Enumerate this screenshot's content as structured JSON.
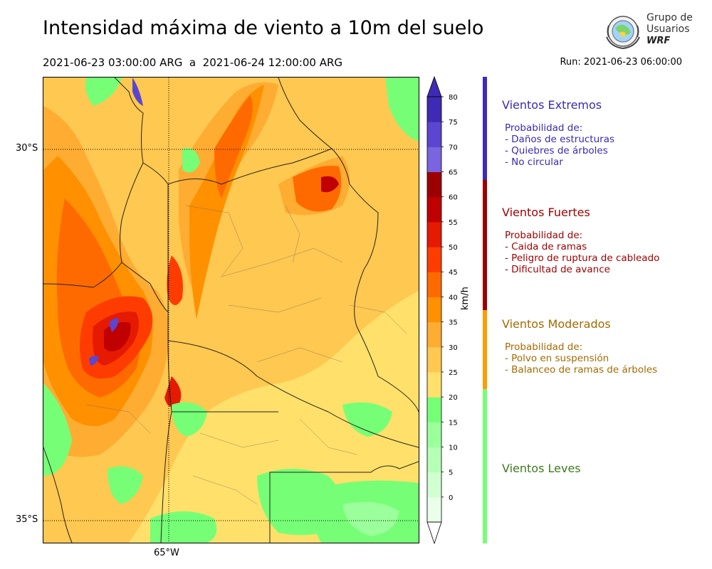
{
  "header": {
    "title": "Intensidad máxima de viento a 10m del suelo",
    "period": "2021-06-23 03:00:00 ARG  a  2021-06-24 12:00:00 ARG",
    "run": "Run: 2021-06-23 06:00:00"
  },
  "logo": {
    "line1": "Grupo de",
    "line2": "Usuarios",
    "line3": "WRF",
    "icon": "globe-logo-icon"
  },
  "map": {
    "lat_ticks": [
      "30°S",
      "35°S"
    ],
    "lon_ticks": [
      "65°W"
    ]
  },
  "colorbar": {
    "unit": "km/h",
    "levels": [
      "0",
      "5",
      "10",
      "15",
      "20",
      "25",
      "30",
      "35",
      "40",
      "45",
      "50",
      "55",
      "60",
      "65",
      "70",
      "75",
      "80"
    ],
    "colors": [
      "#eaffea",
      "#d2ffd2",
      "#b6ffb6",
      "#9bff9b",
      "#76ff76",
      "#ffe06a",
      "#ffc850",
      "#ffac33",
      "#ff9000",
      "#ff6a00",
      "#ff3c00",
      "#e51a00",
      "#c00000",
      "#9d0000",
      "#7a64e0",
      "#5a46d0",
      "#3f2ab6"
    ],
    "under_color": "#ffffff",
    "over_color": "#3f2ab6"
  },
  "categories": {
    "extreme": {
      "title": "Vientos Extremos",
      "heading": "Probabilidad de:",
      "items": [
        "- Daños de estructuras",
        "- Quiebres de árboles",
        "- No circular"
      ],
      "color": "#3f2ab6"
    },
    "strong": {
      "title": "Vientos Fuertes",
      "heading": "Probabilidad de:",
      "items": [
        "- Caida de ramas",
        "- Peligro de ruptura de cableado",
        "- Dificultad de avance"
      ],
      "color": "#9d0000"
    },
    "moderate": {
      "title": "Vientos Moderados",
      "heading": "Probabilidad de:",
      "items": [
        "- Polvo en suspensión",
        "- Balanceo de ramas de árboles"
      ],
      "color": "#ff9d00"
    },
    "light": {
      "title": "Vientos Leves",
      "color": "#76ff76"
    }
  }
}
